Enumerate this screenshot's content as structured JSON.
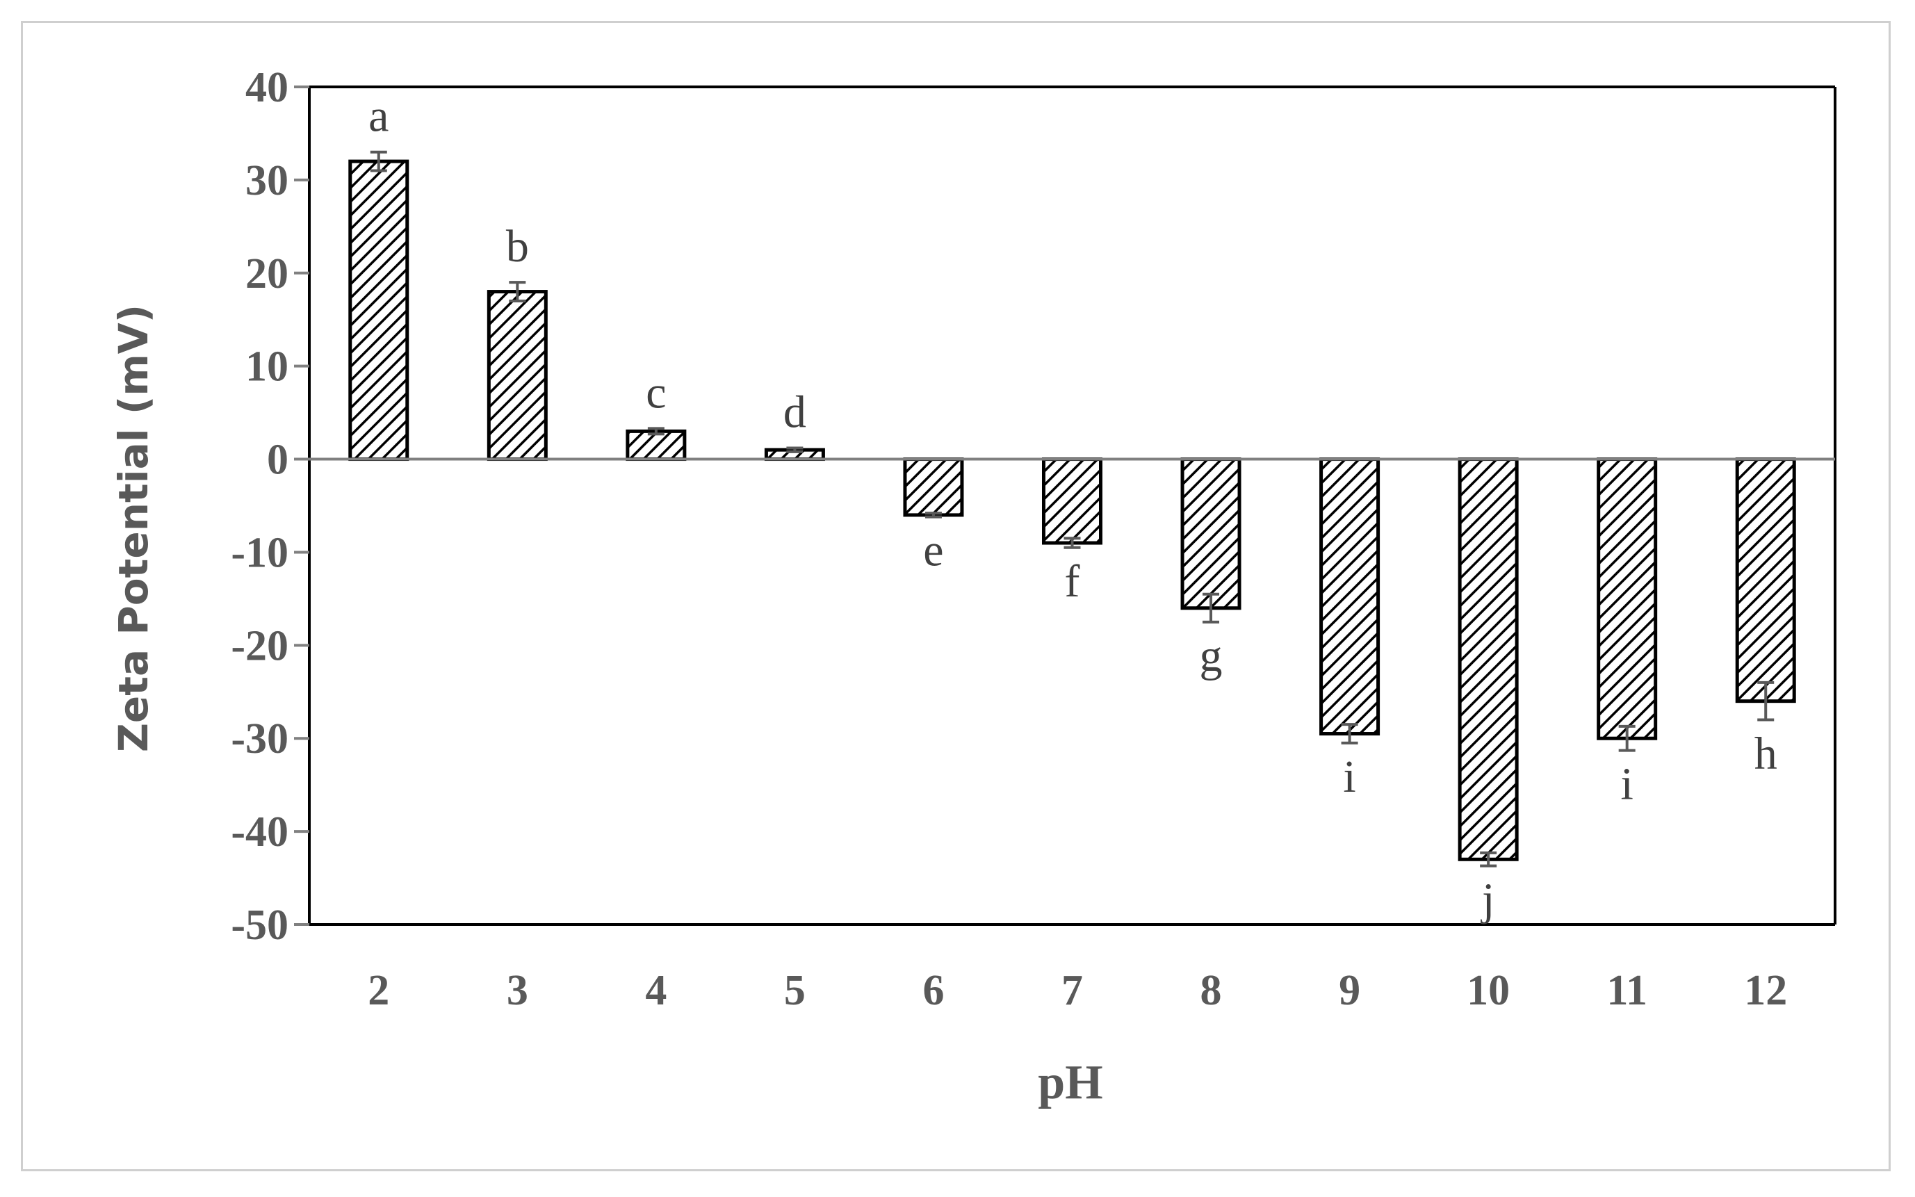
{
  "chart_data": {
    "type": "bar",
    "categories": [
      "2",
      "3",
      "4",
      "5",
      "6",
      "7",
      "8",
      "9",
      "10",
      "11",
      "12"
    ],
    "series": [
      {
        "values": [
          32,
          18,
          3,
          1,
          -6,
          -9,
          -16,
          -29.5,
          -43,
          -30,
          -26
        ],
        "errors": [
          1,
          1,
          0.3,
          0.2,
          0.2,
          0.5,
          1.5,
          1,
          0.7,
          1.3,
          2
        ],
        "letters": [
          "a",
          "b",
          "c",
          "d",
          "e",
          "f",
          "g",
          "i",
          "j",
          "i",
          "h"
        ]
      }
    ],
    "xlabel": "pH",
    "ylabel": "Zeta Potential (mV)",
    "ylim": [
      -50,
      40
    ],
    "yticks": [
      40,
      30,
      20,
      10,
      0,
      -10,
      -20,
      -30,
      -40,
      -50
    ],
    "bar_pattern": "diagonal-hatch",
    "grid": false,
    "legend": "none"
  },
  "colors": {
    "axis": "#808080",
    "bar_outline": "#000000",
    "hatch": "#000000",
    "text": "#595959",
    "frame": "#cfcfcf"
  }
}
